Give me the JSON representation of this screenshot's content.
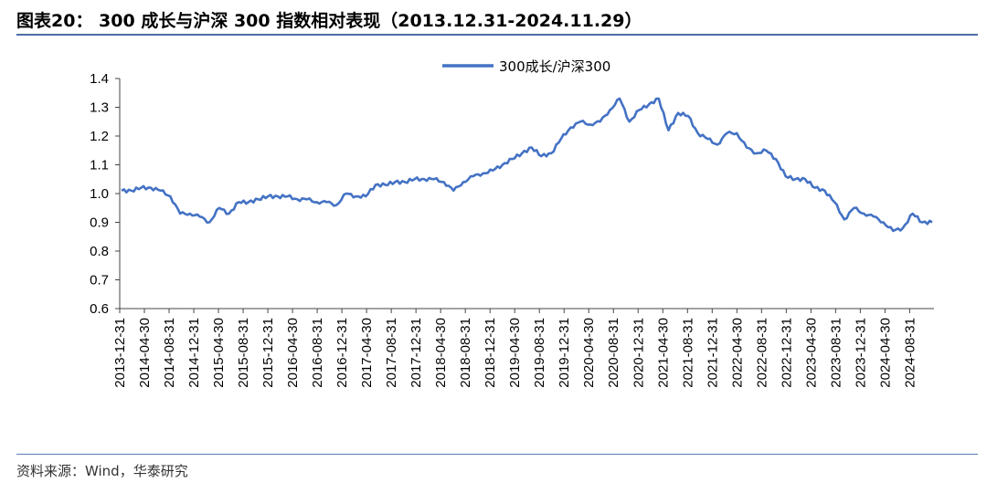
{
  "header": {
    "title": "图表20：  300 成长与沪深 300 指数相对表现（2013.12.31-2024.11.29）"
  },
  "footer": {
    "source": "资料来源：Wind，华泰研究"
  },
  "colors": {
    "line": "#4472c4",
    "rule": "#4a6fa5"
  },
  "chart_data": {
    "type": "line",
    "title": "",
    "xlabel": "",
    "ylabel": "",
    "ylim": [
      0.6,
      1.4
    ],
    "yticks": [
      "1.4",
      "1.3",
      "1.2",
      "1.1",
      "1.0",
      "0.9",
      "0.8",
      "0.7",
      "0.6"
    ],
    "xticks": [
      "2013-12-31",
      "2014-04-30",
      "2014-08-31",
      "2014-12-31",
      "2015-04-30",
      "2015-08-31",
      "2015-12-31",
      "2016-04-30",
      "2016-08-31",
      "2016-12-31",
      "2017-04-30",
      "2017-08-31",
      "2017-12-31",
      "2018-04-30",
      "2018-08-31",
      "2018-12-31",
      "2019-04-30",
      "2019-08-31",
      "2019-12-31",
      "2020-04-30",
      "2020-08-31",
      "2020-12-31",
      "2021-04-30",
      "2021-08-31",
      "2021-12-31",
      "2022-04-30",
      "2022-08-31",
      "2022-12-31",
      "2023-04-30",
      "2023-08-31",
      "2023-12-31",
      "2024-04-30",
      "2024-08-31"
    ],
    "grid": false,
    "legend": "top-center",
    "series": [
      {
        "name": "300成长/沪深300",
        "values": [
          1.01,
          1.01,
          1.02,
          1.02,
          1.01,
          0.99,
          0.93,
          0.93,
          0.92,
          0.9,
          0.95,
          0.93,
          0.97,
          0.97,
          0.98,
          0.99,
          0.99,
          0.99,
          0.98,
          0.98,
          0.97,
          0.97,
          0.96,
          1.0,
          0.99,
          0.99,
          1.03,
          1.03,
          1.04,
          1.04,
          1.05,
          1.05,
          1.05,
          1.04,
          1.01,
          1.04,
          1.06,
          1.07,
          1.08,
          1.1,
          1.12,
          1.14,
          1.16,
          1.13,
          1.14,
          1.19,
          1.23,
          1.25,
          1.24,
          1.25,
          1.29,
          1.33,
          1.25,
          1.29,
          1.31,
          1.33,
          1.22,
          1.28,
          1.27,
          1.21,
          1.19,
          1.17,
          1.21,
          1.21,
          1.16,
          1.14,
          1.15,
          1.12,
          1.06,
          1.05,
          1.05,
          1.02,
          1.01,
          0.97,
          0.91,
          0.95,
          0.93,
          0.92,
          0.9,
          0.87,
          0.88,
          0.93,
          0.9,
          0.9
        ]
      }
    ]
  }
}
